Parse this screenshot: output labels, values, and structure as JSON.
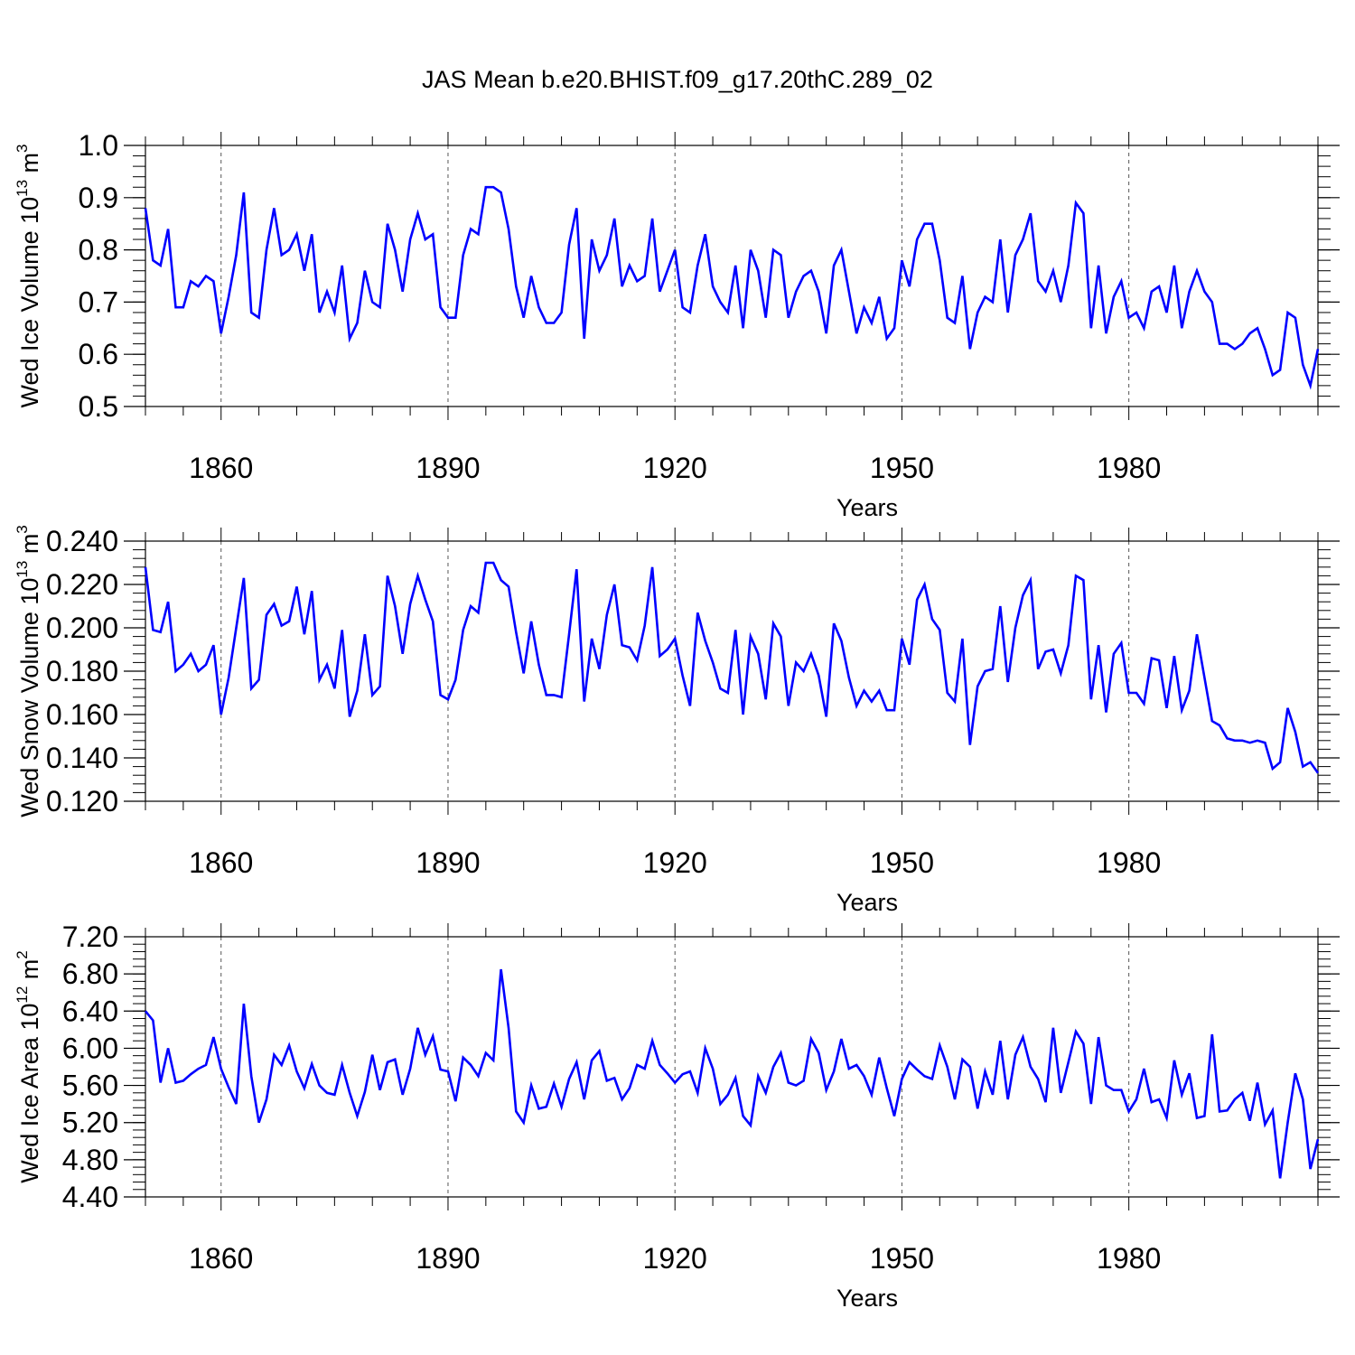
{
  "title": "JAS Mean b.e20.BHIST.f09_g17.20thC.289_02",
  "colors": {
    "line": "#0000ff",
    "axis": "#000000",
    "grid": "#555555"
  },
  "chart_data": [
    {
      "type": "line",
      "title": "JAS Mean b.e20.BHIST.f09_g17.20thC.289_02",
      "xlabel": "Years",
      "ylabel": "Wed Ice Volume 10",
      "ylabel_exp": "13",
      "ylabel_unit": " m",
      "ylabel_unit_exp": "3",
      "xlim": [
        1850,
        2005
      ],
      "ylim": [
        0.5,
        1.0
      ],
      "x_ticks": [
        1860,
        1890,
        1920,
        1950,
        1980
      ],
      "x_tick_labels": [
        "1860",
        "1890",
        "1920",
        "1950",
        "1980"
      ],
      "y_ticks": [
        0.5,
        0.6,
        0.7,
        0.8,
        0.9,
        1.0
      ],
      "y_tick_labels": [
        "0.5",
        "0.6",
        "0.7",
        "0.8",
        "0.9",
        "1.0"
      ],
      "y_minor_step": 0.02,
      "grid": "vertical dashed at major x ticks",
      "x_start": 1850,
      "series": [
        {
          "name": "Wed Ice Volume",
          "values": [
            0.88,
            0.78,
            0.77,
            0.84,
            0.69,
            0.69,
            0.74,
            0.73,
            0.75,
            0.74,
            0.64,
            0.71,
            0.79,
            0.91,
            0.68,
            0.67,
            0.8,
            0.88,
            0.79,
            0.8,
            0.83,
            0.76,
            0.83,
            0.68,
            0.72,
            0.68,
            0.77,
            0.63,
            0.66,
            0.76,
            0.7,
            0.69,
            0.85,
            0.8,
            0.72,
            0.82,
            0.87,
            0.82,
            0.83,
            0.69,
            0.67,
            0.67,
            0.79,
            0.84,
            0.83,
            0.92,
            0.92,
            0.91,
            0.84,
            0.73,
            0.67,
            0.75,
            0.69,
            0.66,
            0.66,
            0.68,
            0.81,
            0.88,
            0.63,
            0.82,
            0.76,
            0.79,
            0.86,
            0.73,
            0.77,
            0.74,
            0.75,
            0.86,
            0.72,
            0.76,
            0.8,
            0.69,
            0.68,
            0.77,
            0.83,
            0.73,
            0.7,
            0.68,
            0.77,
            0.65,
            0.8,
            0.76,
            0.67,
            0.8,
            0.79,
            0.67,
            0.72,
            0.75,
            0.76,
            0.72,
            0.64,
            0.77,
            0.8,
            0.72,
            0.64,
            0.69,
            0.66,
            0.71,
            0.63,
            0.65,
            0.78,
            0.73,
            0.82,
            0.85,
            0.85,
            0.78,
            0.67,
            0.66,
            0.75,
            0.61,
            0.68,
            0.71,
            0.7,
            0.82,
            0.68,
            0.79,
            0.82,
            0.87,
            0.74,
            0.72,
            0.76,
            0.7,
            0.77,
            0.89,
            0.87,
            0.65,
            0.77,
            0.64,
            0.71,
            0.74,
            0.67,
            0.68,
            0.65,
            0.72,
            0.73,
            0.68,
            0.77,
            0.65,
            0.72,
            0.76,
            0.72,
            0.7,
            0.62,
            0.62,
            0.61,
            0.62,
            0.64,
            0.65,
            0.61,
            0.56,
            0.57,
            0.68,
            0.67,
            0.58,
            0.54,
            0.61
          ]
        }
      ]
    },
    {
      "type": "line",
      "xlabel": "Years",
      "ylabel": "Wed Snow Volume 10",
      "ylabel_exp": "13",
      "ylabel_unit": " m",
      "ylabel_unit_exp": "3",
      "xlim": [
        1850,
        2005
      ],
      "ylim": [
        0.12,
        0.24
      ],
      "x_ticks": [
        1860,
        1890,
        1920,
        1950,
        1980
      ],
      "x_tick_labels": [
        "1860",
        "1890",
        "1920",
        "1950",
        "1980"
      ],
      "y_ticks": [
        0.12,
        0.14,
        0.16,
        0.18,
        0.2,
        0.22,
        0.24
      ],
      "y_tick_labels": [
        "0.120",
        "0.140",
        "0.160",
        "0.180",
        "0.200",
        "0.220",
        "0.240"
      ],
      "y_minor_step": 0.004,
      "grid": "vertical dashed at major x ticks",
      "x_start": 1850,
      "series": [
        {
          "name": "Wed Snow Volume",
          "values": [
            0.228,
            0.199,
            0.198,
            0.212,
            0.18,
            0.183,
            0.188,
            0.18,
            0.183,
            0.192,
            0.16,
            0.177,
            0.2,
            0.223,
            0.172,
            0.176,
            0.206,
            0.211,
            0.201,
            0.203,
            0.219,
            0.197,
            0.217,
            0.176,
            0.183,
            0.172,
            0.199,
            0.159,
            0.171,
            0.197,
            0.169,
            0.173,
            0.224,
            0.21,
            0.188,
            0.211,
            0.224,
            0.213,
            0.203,
            0.169,
            0.167,
            0.176,
            0.199,
            0.21,
            0.207,
            0.23,
            0.23,
            0.222,
            0.219,
            0.198,
            0.179,
            0.203,
            0.183,
            0.169,
            0.169,
            0.168,
            0.197,
            0.227,
            0.166,
            0.195,
            0.181,
            0.206,
            0.22,
            0.192,
            0.191,
            0.185,
            0.201,
            0.228,
            0.187,
            0.19,
            0.195,
            0.178,
            0.164,
            0.207,
            0.194,
            0.184,
            0.172,
            0.17,
            0.199,
            0.16,
            0.196,
            0.188,
            0.167,
            0.202,
            0.196,
            0.164,
            0.184,
            0.18,
            0.188,
            0.178,
            0.159,
            0.202,
            0.194,
            0.177,
            0.164,
            0.171,
            0.166,
            0.171,
            0.162,
            0.162,
            0.195,
            0.183,
            0.213,
            0.22,
            0.204,
            0.199,
            0.17,
            0.166,
            0.195,
            0.146,
            0.173,
            0.18,
            0.181,
            0.21,
            0.175,
            0.2,
            0.215,
            0.222,
            0.181,
            0.189,
            0.19,
            0.179,
            0.192,
            0.224,
            0.222,
            0.167,
            0.192,
            0.161,
            0.188,
            0.193,
            0.17,
            0.17,
            0.165,
            0.186,
            0.185,
            0.163,
            0.187,
            0.162,
            0.171,
            0.197,
            0.177,
            0.157,
            0.155,
            0.149,
            0.148,
            0.148,
            0.147,
            0.148,
            0.147,
            0.135,
            0.138,
            0.163,
            0.152,
            0.136,
            0.138,
            0.133
          ]
        }
      ]
    },
    {
      "type": "line",
      "xlabel": "Years",
      "ylabel": "Wed Ice Area 10",
      "ylabel_exp": "12",
      "ylabel_unit": " m",
      "ylabel_unit_exp": "2",
      "xlim": [
        1850,
        2005
      ],
      "ylim": [
        4.4,
        7.2
      ],
      "x_ticks": [
        1860,
        1890,
        1920,
        1950,
        1980
      ],
      "x_tick_labels": [
        "1860",
        "1890",
        "1920",
        "1950",
        "1980"
      ],
      "y_ticks": [
        4.4,
        4.8,
        5.2,
        5.6,
        6.0,
        6.4,
        6.8,
        7.2
      ],
      "y_tick_labels": [
        "4.40",
        "4.80",
        "5.20",
        "5.60",
        "6.00",
        "6.40",
        "6.80",
        "7.20"
      ],
      "y_minor_step": 0.08,
      "grid": "vertical dashed at major x ticks",
      "x_start": 1850,
      "series": [
        {
          "name": "Wed Ice Area",
          "values": [
            6.4,
            6.3,
            5.63,
            6.0,
            5.63,
            5.65,
            5.72,
            5.78,
            5.82,
            6.12,
            5.78,
            5.58,
            5.4,
            6.48,
            5.7,
            5.2,
            5.45,
            5.93,
            5.82,
            6.03,
            5.75,
            5.57,
            5.83,
            5.6,
            5.52,
            5.5,
            5.82,
            5.52,
            5.27,
            5.53,
            5.93,
            5.55,
            5.85,
            5.88,
            5.5,
            5.78,
            6.22,
            5.93,
            6.13,
            5.77,
            5.75,
            5.43,
            5.9,
            5.82,
            5.7,
            5.95,
            5.87,
            6.85,
            6.22,
            5.32,
            5.2,
            5.6,
            5.35,
            5.37,
            5.62,
            5.37,
            5.67,
            5.85,
            5.45,
            5.87,
            5.97,
            5.65,
            5.68,
            5.45,
            5.57,
            5.82,
            5.78,
            6.08,
            5.82,
            5.73,
            5.63,
            5.72,
            5.75,
            5.52,
            6.0,
            5.78,
            5.4,
            5.5,
            5.68,
            5.27,
            5.17,
            5.7,
            5.52,
            5.8,
            5.95,
            5.63,
            5.6,
            5.65,
            6.1,
            5.95,
            5.55,
            5.75,
            6.1,
            5.78,
            5.82,
            5.7,
            5.5,
            5.9,
            5.57,
            5.27,
            5.67,
            5.85,
            5.77,
            5.7,
            5.67,
            6.03,
            5.8,
            5.45,
            5.88,
            5.8,
            5.35,
            5.75,
            5.5,
            6.08,
            5.45,
            5.93,
            6.12,
            5.8,
            5.67,
            5.42,
            6.22,
            5.52,
            5.85,
            6.18,
            6.05,
            5.4,
            6.12,
            5.6,
            5.55,
            5.55,
            5.32,
            5.45,
            5.78,
            5.42,
            5.45,
            5.25,
            5.87,
            5.5,
            5.73,
            5.25,
            5.27,
            6.15,
            5.32,
            5.33,
            5.45,
            5.52,
            5.22,
            5.63,
            5.18,
            5.33,
            4.6,
            5.2,
            5.73,
            5.45,
            4.7,
            5.02
          ]
        }
      ]
    }
  ]
}
